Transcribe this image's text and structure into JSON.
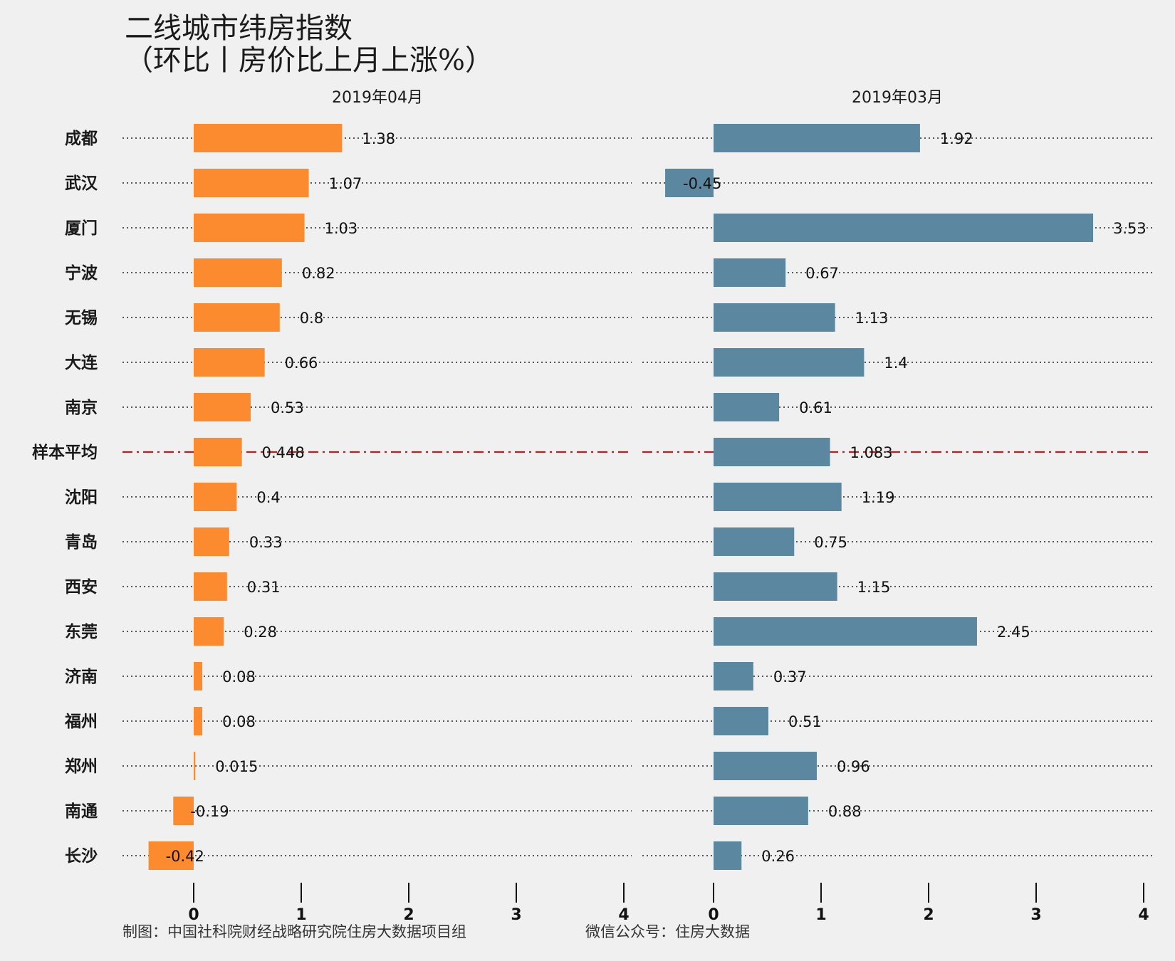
{
  "chart_data": {
    "type": "bar",
    "orientation": "horizontal",
    "title_line1": "二线城市纬房指数",
    "title_line2": "（环比丨房价比上月上涨%）",
    "categories": [
      "成都",
      "武汉",
      "厦门",
      "宁波",
      "无锡",
      "大连",
      "南京",
      "样本平均",
      "沈阳",
      "青岛",
      "西安",
      "东莞",
      "济南",
      "福州",
      "郑州",
      "南通",
      "长沙"
    ],
    "series": [
      {
        "name": "2019年04月",
        "color": "#fc8a2f",
        "values": [
          1.38,
          1.07,
          1.03,
          0.82,
          0.8,
          0.66,
          0.53,
          0.448,
          0.4,
          0.33,
          0.31,
          0.28,
          0.08,
          0.08,
          0.015,
          -0.19,
          -0.42
        ],
        "labels": [
          "1.38",
          "1.07",
          "1.03",
          "0.82",
          "0.8",
          "0.66",
          "0.53",
          "0.448",
          "0.4",
          "0.33",
          "0.31",
          "0.28",
          "0.08",
          "0.08",
          "0.015",
          "-0.19",
          "-0.42"
        ]
      },
      {
        "name": "2019年03月",
        "color": "#5b87a1",
        "values": [
          1.92,
          -0.45,
          3.53,
          0.67,
          1.13,
          1.4,
          0.61,
          1.083,
          1.19,
          0.75,
          1.15,
          2.45,
          0.37,
          0.51,
          0.96,
          0.88,
          0.26
        ],
        "labels": [
          "1.92",
          "-0.45",
          "3.53",
          "0.67",
          "1.13",
          "1.4",
          "0.61",
          "1.083",
          "1.19",
          "0.75",
          "1.15",
          "2.45",
          "0.37",
          "0.51",
          "0.96",
          "0.88",
          "0.26"
        ]
      }
    ],
    "xlim": [
      -0.7,
      4.0
    ],
    "xticks": [
      "0",
      "1",
      "2",
      "3",
      "4"
    ],
    "average_category": "样本平均",
    "average_line_color": "#b22222",
    "caption_left": "制图：中国社科院财经战略研究院住房大数据项目组",
    "caption_right": "微信公众号：住房大数据"
  }
}
